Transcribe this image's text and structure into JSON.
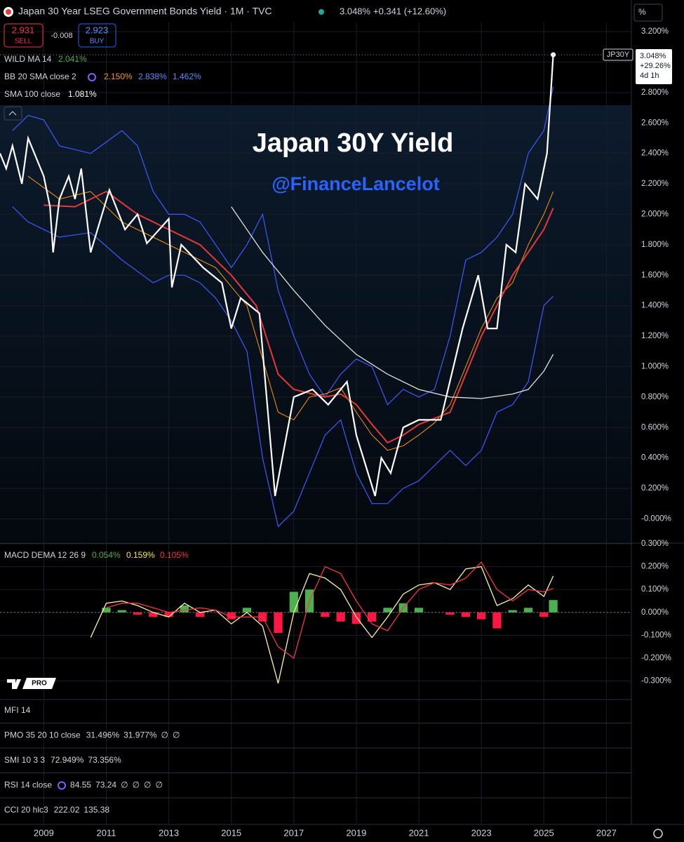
{
  "ui": {
    "header": {
      "title": "Japan 30 Year LSEG Government Bonds Yield · 1M · TVC",
      "price": "3.048%",
      "change": "+0.341 (+12.60%)",
      "sell_price": "2.931",
      "sell_label": "SELL",
      "spread": "-0.008",
      "buy_price": "2.923",
      "buy_label": "BUY",
      "unit": "%"
    },
    "indicators": [
      {
        "label": "WILD MA 14",
        "values": [
          "2.041%"
        ]
      },
      {
        "label": "BB 20 SMA close 2",
        "values": [
          "2.150%",
          "2.838%",
          "1.462%"
        ]
      },
      {
        "label": "SMA 100 close",
        "values": [
          "1.081%"
        ]
      }
    ],
    "overlay": {
      "title": "Japan 30Y Yield",
      "handle": "@FinanceLancelot"
    },
    "price_tag": {
      "symbol": "JP30Y",
      "lines": [
        "3.048%",
        "+29.26%",
        "4d 1h"
      ]
    },
    "macd_legend": {
      "label": "MACD DEMA 12 26 9",
      "values": [
        "0.054%",
        "0.159%",
        "0.105%"
      ]
    },
    "panes": [
      {
        "label": "MFI 14",
        "values": []
      },
      {
        "label": "PMO 35 20 10 close",
        "values": [
          "31.496%",
          "31.977%",
          "∅",
          "∅"
        ]
      },
      {
        "label": "SMI 10 3 3",
        "values": [
          "72.949%",
          "73.356%"
        ]
      },
      {
        "label": "RSI 14 close",
        "values": [
          "84.55",
          "73.24",
          "∅",
          "∅",
          "∅",
          "∅"
        ]
      },
      {
        "label": "CCI 20 hlc3",
        "values": [
          "222.02",
          "135.38"
        ]
      }
    ]
  },
  "chart_data": [
    {
      "type": "line",
      "xlim": [
        2007.6,
        2027.8
      ],
      "ylim": [
        -0.15,
        3.26
      ],
      "grid": true,
      "xticks": [
        2009,
        2011,
        2013,
        2015,
        2017,
        2019,
        2021,
        2023,
        2025,
        2027
      ],
      "yticks": [
        {
          "value": 3.2,
          "label": "3.200%"
        },
        {
          "value": 3.0,
          "label": "3.000%"
        },
        {
          "value": 2.8,
          "label": "2.800%"
        },
        {
          "value": 2.6,
          "label": "2.600%"
        },
        {
          "value": 2.4,
          "label": "2.400%"
        },
        {
          "value": 2.2,
          "label": "2.200%"
        },
        {
          "value": 2.0,
          "label": "2.000%"
        },
        {
          "value": 1.8,
          "label": "1.800%"
        },
        {
          "value": 1.6,
          "label": "1.600%"
        },
        {
          "value": 1.4,
          "label": "1.400%"
        },
        {
          "value": 1.2,
          "label": "1.200%"
        },
        {
          "value": 1.0,
          "label": "1.000%"
        },
        {
          "value": 0.8,
          "label": "0.800%"
        },
        {
          "value": 0.6,
          "label": "0.600%"
        },
        {
          "value": 0.4,
          "label": "0.400%"
        },
        {
          "value": 0.2,
          "label": "0.200%"
        },
        {
          "value": 0,
          "label": "-0.000%"
        }
      ],
      "series": [
        {
          "name": "BB 20 SMA close 2",
          "color": "#3d5afe",
          "width": 1.2,
          "x": [
            2008.0,
            2008.5,
            2009.0,
            2009.5,
            2010.5,
            2011.5,
            2012.0,
            2012.5,
            2013.0,
            2013.5,
            2014.0,
            2014.5,
            2015.0,
            2015.5,
            2016.0,
            2016.5,
            2017.0,
            2017.5,
            2018.0,
            2018.5,
            2019.0,
            2019.5,
            2020.0,
            2020.5,
            2021.0,
            2021.5,
            2022.0,
            2022.5,
            2023.0,
            2023.5,
            2024.0,
            2024.5,
            2025.0,
            2025.3
          ],
          "values": [
            2.55,
            2.65,
            2.62,
            2.45,
            2.4,
            2.55,
            2.45,
            2.15,
            2.0,
            2.0,
            1.95,
            1.8,
            1.65,
            1.8,
            2.0,
            1.5,
            1.2,
            0.95,
            0.8,
            0.95,
            1.05,
            1.0,
            0.75,
            0.85,
            0.8,
            0.85,
            1.2,
            1.7,
            1.75,
            1.85,
            2.0,
            2.4,
            2.55,
            2.838
          ]
        },
        {
          "name": "BB 20 SMA close 2",
          "color": "#3d5afe",
          "width": 1.2,
          "x": [
            2008.0,
            2008.5,
            2009.0,
            2009.5,
            2010.5,
            2011.5,
            2012.5,
            2013.0,
            2013.5,
            2014.0,
            2014.5,
            2015.0,
            2015.5,
            2016.0,
            2016.5,
            2017.0,
            2017.5,
            2018.0,
            2018.5,
            2019.0,
            2019.5,
            2020.0,
            2020.5,
            2021.0,
            2021.5,
            2022.0,
            2022.5,
            2023.0,
            2023.5,
            2024.0,
            2024.5,
            2025.0,
            2025.3
          ],
          "values": [
            2.05,
            1.95,
            1.9,
            1.85,
            1.88,
            1.7,
            1.55,
            1.6,
            1.6,
            1.55,
            1.45,
            1.3,
            1.1,
            0.4,
            -0.05,
            0.05,
            0.3,
            0.55,
            0.65,
            0.3,
            0.1,
            0.1,
            0.2,
            0.25,
            0.35,
            0.45,
            0.35,
            0.45,
            0.7,
            0.75,
            0.9,
            1.4,
            1.462
          ]
        },
        {
          "name": "BB 20 SMA close 2",
          "color": "#ff9800",
          "width": 1,
          "x": [
            2008.5,
            2009.5,
            2010.5,
            2011.5,
            2012.5,
            2013.5,
            2014.5,
            2015.5,
            2016.0,
            2016.5,
            2017.0,
            2017.5,
            2018.0,
            2018.5,
            2019.0,
            2019.5,
            2020.0,
            2020.5,
            2021.0,
            2021.5,
            2022.0,
            2022.5,
            2023.0,
            2023.5,
            2024.0,
            2024.5,
            2025.0,
            2025.3
          ],
          "values": [
            2.25,
            2.1,
            2.15,
            1.95,
            1.85,
            1.75,
            1.65,
            1.4,
            1.05,
            0.7,
            0.65,
            0.8,
            0.82,
            0.86,
            0.7,
            0.55,
            0.45,
            0.48,
            0.55,
            0.63,
            0.75,
            1.0,
            1.25,
            1.45,
            1.55,
            1.8,
            2.0,
            2.15
          ]
        },
        {
          "name": "WILD MA 14",
          "color": "#e53935",
          "width": 2,
          "x": [
            2009.0,
            2010.0,
            2011.0,
            2012.0,
            2013.0,
            2014.0,
            2015.0,
            2015.8,
            2016.5,
            2017.0,
            2018.0,
            2018.5,
            2019.0,
            2019.5,
            2020.0,
            2020.5,
            2021.0,
            2022.0,
            2022.5,
            2023.0,
            2024.0,
            2025.0,
            2025.3
          ],
          "values": [
            2.06,
            2.05,
            2.15,
            2.0,
            1.9,
            1.8,
            1.6,
            1.4,
            0.95,
            0.85,
            0.8,
            0.82,
            0.75,
            0.62,
            0.5,
            0.55,
            0.62,
            0.7,
            0.95,
            1.2,
            1.6,
            1.9,
            2.041
          ]
        },
        {
          "name": "SMA 100 close",
          "color": "#e0e0e0",
          "width": 1.3,
          "x": [
            2015.0,
            2016.0,
            2017.0,
            2018.0,
            2019.0,
            2020.0,
            2021.0,
            2022.0,
            2023.0,
            2024.0,
            2024.5,
            2025.0,
            2025.3
          ],
          "values": [
            2.05,
            1.75,
            1.5,
            1.27,
            1.08,
            0.95,
            0.85,
            0.8,
            0.79,
            0.82,
            0.85,
            0.97,
            1.081
          ]
        },
        {
          "name": "JP30Y",
          "color": "#ffffff",
          "width": 2.2,
          "last_marker": true,
          "x": [
            2007.6,
            2007.8,
            2008.0,
            2008.3,
            2008.5,
            2008.8,
            2009.0,
            2009.2,
            2009.3,
            2009.5,
            2009.8,
            2010.0,
            2010.2,
            2010.5,
            2011.1,
            2011.6,
            2012.0,
            2012.3,
            2013.0,
            2013.1,
            2013.4,
            2014.1,
            2014.7,
            2015.0,
            2015.3,
            2015.9,
            2016.4,
            2017.0,
            2017.6,
            2018.1,
            2018.7,
            2019.0,
            2019.6,
            2019.8,
            2020.1,
            2020.5,
            2021.0,
            2021.7,
            2022.4,
            2022.9,
            2023.2,
            2023.5,
            2023.8,
            2024.1,
            2024.4,
            2024.8,
            2025.1,
            2025.3
          ],
          "values": [
            2.4,
            2.3,
            2.45,
            2.2,
            2.5,
            2.35,
            2.25,
            2.05,
            1.75,
            2.1,
            2.25,
            2.1,
            2.3,
            1.75,
            2.16,
            1.9,
            2.0,
            1.81,
            1.97,
            1.52,
            1.8,
            1.65,
            1.55,
            1.25,
            1.45,
            1.35,
            0.15,
            0.8,
            0.85,
            0.75,
            0.9,
            0.55,
            0.15,
            0.4,
            0.3,
            0.6,
            0.65,
            0.65,
            1.25,
            1.6,
            1.25,
            1.25,
            1.8,
            1.75,
            2.2,
            2.1,
            2.4,
            3.048
          ]
        }
      ]
    },
    {
      "type": "macd",
      "xlim": [
        2007.6,
        2027.8
      ],
      "ylim": [
        -0.375,
        0.3
      ],
      "grid": true,
      "yticks": [
        {
          "value": 0.3,
          "label": "0.300%"
        },
        {
          "value": 0.2,
          "label": "0.200%"
        },
        {
          "value": 0.1,
          "label": "0.100%"
        },
        {
          "value": 0,
          "label": "0.000%"
        },
        {
          "value": -0.1,
          "label": "-0.100%"
        },
        {
          "value": -0.2,
          "label": "-0.200%"
        },
        {
          "value": -0.3,
          "label": "-0.300%"
        }
      ],
      "x": [
        2010.5,
        2011.0,
        2011.5,
        2012.0,
        2012.5,
        2013.0,
        2013.5,
        2014.0,
        2014.5,
        2015.0,
        2015.5,
        2016.0,
        2016.5,
        2017.0,
        2017.5,
        2018.0,
        2018.5,
        2019.0,
        2019.5,
        2020.0,
        2020.5,
        2021.0,
        2021.5,
        2022.0,
        2022.5,
        2023.0,
        2023.5,
        2024.0,
        2024.5,
        2025.0,
        2025.3
      ],
      "histogram": {
        "up_color": "#4caf50",
        "down_color": "#ff1744",
        "values": [
          null,
          0.02,
          0.01,
          -0.01,
          -0.02,
          -0.02,
          0.03,
          -0.02,
          0.0,
          -0.03,
          0.02,
          -0.04,
          -0.09,
          0.09,
          0.1,
          -0.02,
          -0.04,
          -0.05,
          -0.04,
          0.02,
          0.04,
          0.02,
          0.0,
          -0.01,
          -0.02,
          -0.03,
          -0.07,
          0.01,
          0.02,
          -0.02,
          0.054
        ]
      },
      "series": [
        {
          "color": "#fff59d",
          "values": [
            -0.11,
            0.04,
            0.05,
            0.03,
            0.0,
            -0.02,
            0.04,
            0.0,
            0.01,
            -0.05,
            0.0,
            -0.06,
            -0.31,
            0.0,
            0.17,
            0.15,
            0.1,
            -0.02,
            -0.11,
            -0.02,
            0.08,
            0.12,
            0.13,
            0.1,
            0.19,
            0.2,
            0.03,
            0.06,
            0.12,
            0.07,
            0.159
          ]
        },
        {
          "color": "#f23645",
          "values": [
            null,
            0.02,
            0.04,
            0.04,
            0.02,
            0.0,
            0.01,
            0.02,
            0.01,
            -0.02,
            -0.02,
            -0.02,
            -0.15,
            -0.2,
            0.05,
            0.2,
            0.17,
            0.05,
            -0.05,
            -0.08,
            0.02,
            0.1,
            0.13,
            0.12,
            0.15,
            0.22,
            0.1,
            0.05,
            0.1,
            0.09,
            0.105
          ]
        }
      ]
    }
  ]
}
